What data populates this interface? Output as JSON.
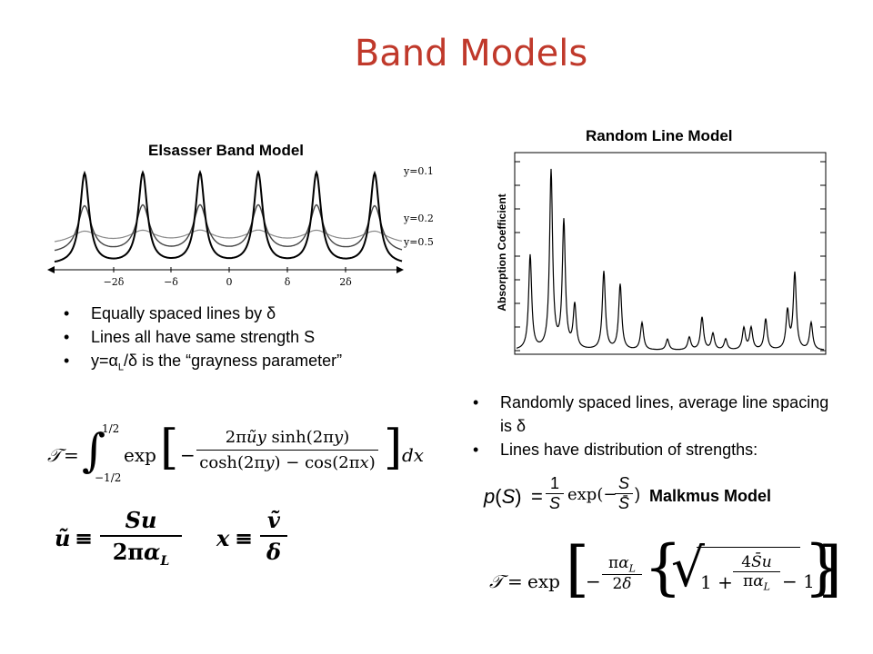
{
  "title": "Band Models",
  "elsasser": {
    "title": "Elsasser Band Model",
    "curve_labels": [
      "y=0.1",
      "y=0.2",
      "y=0.5"
    ],
    "x_ticks": [
      "−2δ",
      "−δ",
      "0",
      "δ",
      "2δ"
    ]
  },
  "random_line": {
    "title": "Random Line Model",
    "ylabel": "Absorption Coefficient"
  },
  "left_bullets": [
    "Equally spaced lines by δ",
    "Lines all have same strength S",
    {
      "pre": "y=α",
      "sub": "L",
      "post": "/δ  is the “grayness parameter”"
    }
  ],
  "right_bullets": [
    "Randomly spaced lines, average line spacing is δ",
    "Lines have distribution of strengths:"
  ],
  "malkmus_label": "Malkmus Model"
}
